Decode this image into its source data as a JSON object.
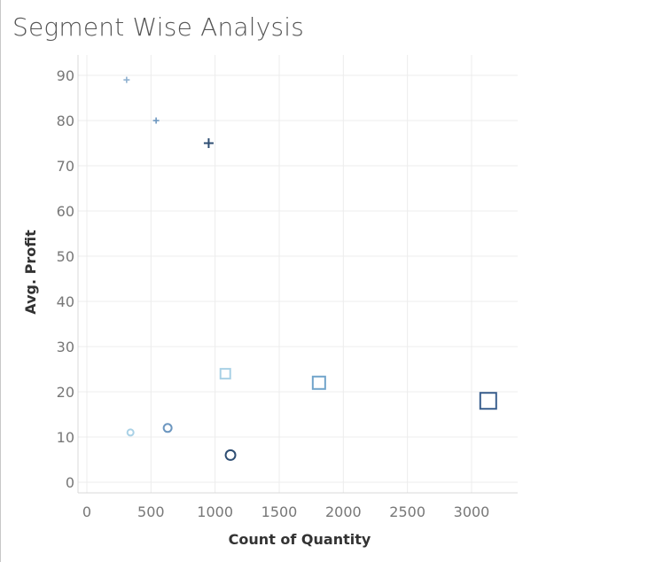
{
  "chart_data": {
    "type": "scatter",
    "title": "Segment Wise Analysis",
    "xlabel": "Count of Quantity",
    "ylabel": "Avg. Profit",
    "xlim": [
      0,
      3500
    ],
    "ylim": [
      0,
      95
    ],
    "x_ticks": [
      0,
      500,
      1000,
      1500,
      2000,
      2500,
      3000
    ],
    "y_ticks": [
      0,
      10,
      20,
      30,
      40,
      50,
      60,
      70,
      80,
      90
    ],
    "grid": true,
    "legend": "none",
    "series": [
      {
        "marker": "plus",
        "points": [
          {
            "x": 310,
            "y": 89,
            "color": "#8fb1cf",
            "size": "small"
          },
          {
            "x": 540,
            "y": 80,
            "color": "#6d97c0",
            "size": "small"
          },
          {
            "x": 950,
            "y": 75,
            "color": "#2e4e73",
            "size": "medium"
          }
        ]
      },
      {
        "marker": "square",
        "points": [
          {
            "x": 1080,
            "y": 24,
            "color": "#a9d1e6",
            "size": "small"
          },
          {
            "x": 1810,
            "y": 22,
            "color": "#72a5cb",
            "size": "medium"
          },
          {
            "x": 3130,
            "y": 18,
            "color": "#3a5f8e",
            "size": "large"
          }
        ]
      },
      {
        "marker": "circle",
        "points": [
          {
            "x": 340,
            "y": 11,
            "color": "#a9d1e6",
            "size": "small"
          },
          {
            "x": 630,
            "y": 12,
            "color": "#6d97c0",
            "size": "medium"
          },
          {
            "x": 1120,
            "y": 6,
            "color": "#2e4e73",
            "size": "large"
          }
        ]
      }
    ]
  }
}
